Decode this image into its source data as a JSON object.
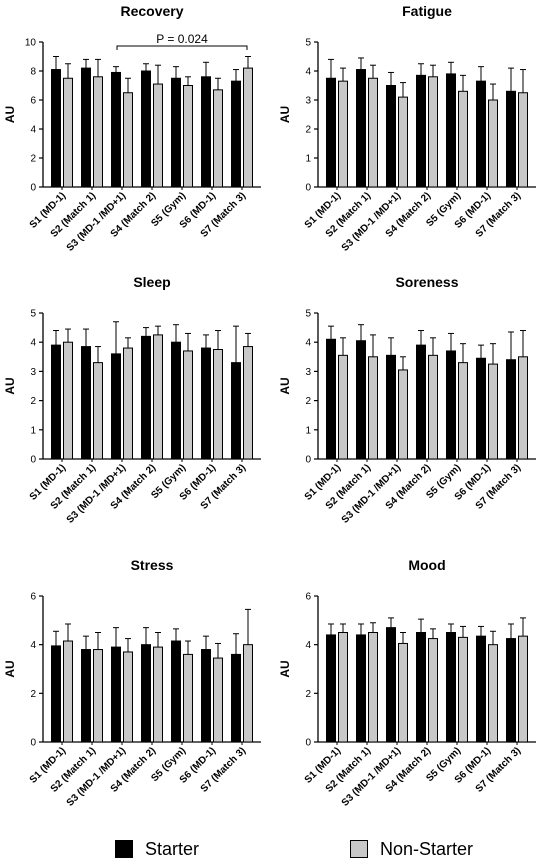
{
  "colors": {
    "starter": "#000000",
    "non_starter": "#c8c8c8",
    "axis": "#000000"
  },
  "legend": {
    "starter": "Starter",
    "non_starter": "Non-Starter"
  },
  "chart_data": [
    {
      "type": "bar",
      "title": "Recovery",
      "ylabel": "AU",
      "ylim": [
        0,
        10
      ],
      "yticks": [
        0,
        2,
        4,
        6,
        8,
        10
      ],
      "categories": [
        "S1 (MD-1)",
        "S2 (Match 1)",
        "S3 (MD-1 /MD+1)",
        "S4 (Match 2)",
        "S5 (Gym)",
        "S6 (MD-1)",
        "S7 (Match 3)"
      ],
      "series": [
        {
          "name": "Starter",
          "values": [
            8.1,
            8.2,
            7.9,
            8.0,
            7.5,
            7.6,
            7.3
          ],
          "errors": [
            0.9,
            0.6,
            0.4,
            0.5,
            0.8,
            1.0,
            0.8
          ]
        },
        {
          "name": "Non-Starter",
          "values": [
            7.5,
            7.6,
            6.5,
            7.1,
            7.0,
            6.7,
            8.2
          ],
          "errors": [
            1.0,
            1.2,
            1.0,
            1.3,
            0.6,
            0.8,
            0.8
          ]
        }
      ],
      "annotation": {
        "text": "P = 0.024",
        "from": 2,
        "to": 6
      }
    },
    {
      "type": "bar",
      "title": "Fatigue",
      "ylabel": "AU",
      "ylim": [
        0,
        5
      ],
      "yticks": [
        0,
        1,
        2,
        3,
        4,
        5
      ],
      "categories": [
        "S1 (MD-1)",
        "S2 (Match 1)",
        "S3 (MD-1 /MD+1)",
        "S4 (Match 2)",
        "S5 (Gym)",
        "S6 (MD-1)",
        "S7 (Match 3)"
      ],
      "series": [
        {
          "name": "Starter",
          "values": [
            3.75,
            4.05,
            3.5,
            3.85,
            3.9,
            3.65,
            3.3
          ],
          "errors": [
            0.65,
            0.4,
            0.45,
            0.4,
            0.4,
            0.5,
            0.8
          ]
        },
        {
          "name": "Non-Starter",
          "values": [
            3.65,
            3.75,
            3.1,
            3.8,
            3.3,
            3.0,
            3.25
          ],
          "errors": [
            0.45,
            0.45,
            0.5,
            0.4,
            0.55,
            0.55,
            0.8
          ]
        }
      ]
    },
    {
      "type": "bar",
      "title": "Sleep",
      "ylabel": "AU",
      "ylim": [
        0,
        5
      ],
      "yticks": [
        0,
        1,
        2,
        3,
        4,
        5
      ],
      "categories": [
        "S1 (MD-1)",
        "S2 (Match 1)",
        "S3 (MD-1 /MD+1)",
        "S4 (Match 2)",
        "S5 (Gym)",
        "S6 (MD-1)",
        "S7 (Match 3)"
      ],
      "series": [
        {
          "name": "Starter",
          "values": [
            3.9,
            3.85,
            3.6,
            4.2,
            4.0,
            3.8,
            3.3
          ],
          "errors": [
            0.5,
            0.6,
            1.1,
            0.3,
            0.6,
            0.45,
            1.25
          ]
        },
        {
          "name": "Non-Starter",
          "values": [
            4.0,
            3.3,
            3.8,
            4.25,
            3.7,
            3.75,
            3.85
          ],
          "errors": [
            0.45,
            0.55,
            0.35,
            0.3,
            0.6,
            0.65,
            0.45
          ]
        }
      ]
    },
    {
      "type": "bar",
      "title": "Soreness",
      "ylabel": "AU",
      "ylim": [
        0,
        5
      ],
      "yticks": [
        0,
        1,
        2,
        3,
        4,
        5
      ],
      "categories": [
        "S1 (MD-1)",
        "S2 (Match 1)",
        "S3 (MD-1 /MD+1)",
        "S4 (Match 2)",
        "S5 (Gym)",
        "S6 (MD-1)",
        "S7 (Match 3)"
      ],
      "series": [
        {
          "name": "Starter",
          "values": [
            4.1,
            4.05,
            3.55,
            3.9,
            3.7,
            3.45,
            3.4
          ],
          "errors": [
            0.45,
            0.55,
            0.6,
            0.5,
            0.6,
            0.45,
            0.95
          ]
        },
        {
          "name": "Non-Starter",
          "values": [
            3.55,
            3.5,
            3.05,
            3.55,
            3.3,
            3.25,
            3.5
          ],
          "errors": [
            0.6,
            0.75,
            0.45,
            0.6,
            0.65,
            0.7,
            0.9
          ]
        }
      ]
    },
    {
      "type": "bar",
      "title": "Stress",
      "ylabel": "AU",
      "ylim": [
        0,
        6
      ],
      "yticks": [
        0,
        2,
        4,
        6
      ],
      "categories": [
        "S1 (MD-1)",
        "S2 (Match 1)",
        "S3 (MD-1 /MD+1)",
        "S4 (Match 2)",
        "S5 (Gym)",
        "S6 (MD-1)",
        "S7 (Match 3)"
      ],
      "series": [
        {
          "name": "Starter",
          "values": [
            3.95,
            3.8,
            3.9,
            4.0,
            4.15,
            3.8,
            3.6
          ],
          "errors": [
            0.6,
            0.55,
            0.8,
            0.7,
            0.5,
            0.55,
            0.85
          ]
        },
        {
          "name": "Non-Starter",
          "values": [
            4.15,
            3.8,
            3.7,
            3.9,
            3.6,
            3.45,
            4.0
          ],
          "errors": [
            0.7,
            0.7,
            0.55,
            0.6,
            0.55,
            0.6,
            1.45
          ]
        }
      ]
    },
    {
      "type": "bar",
      "title": "Mood",
      "ylabel": "AU",
      "ylim": [
        0,
        6
      ],
      "yticks": [
        0,
        2,
        4,
        6
      ],
      "categories": [
        "S1 (MD-1)",
        "S2 (Match 1)",
        "S3 (MD-1 /MD+1)",
        "S4 (Match 2)",
        "S5 (Gym)",
        "S6 (MD-1)",
        "S7 (Match 3)"
      ],
      "series": [
        {
          "name": "Starter",
          "values": [
            4.4,
            4.4,
            4.7,
            4.5,
            4.5,
            4.35,
            4.25
          ],
          "errors": [
            0.45,
            0.45,
            0.4,
            0.55,
            0.35,
            0.4,
            0.6
          ]
        },
        {
          "name": "Non-Starter",
          "values": [
            4.5,
            4.5,
            4.05,
            4.25,
            4.3,
            4.0,
            4.35
          ],
          "errors": [
            0.35,
            0.4,
            0.45,
            0.4,
            0.45,
            0.55,
            0.75
          ]
        }
      ]
    }
  ]
}
